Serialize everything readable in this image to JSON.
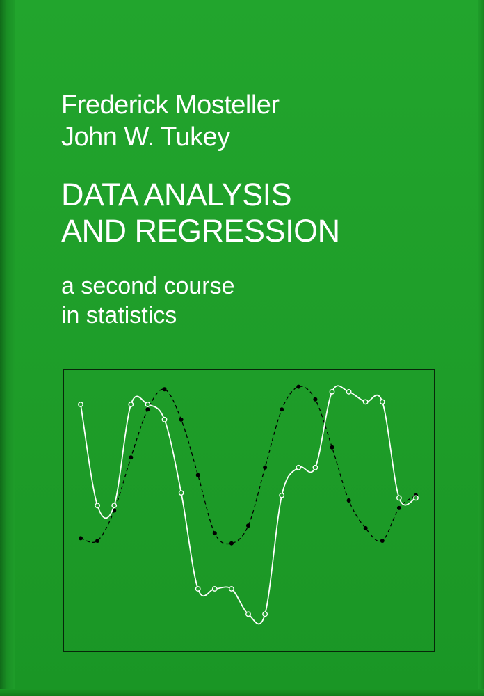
{
  "book": {
    "authors": [
      "Frederick Mosteller",
      "John W. Tukey"
    ],
    "title_lines": [
      "DATA ANALYSIS",
      "AND REGRESSION"
    ],
    "subtitle_lines": [
      "a second course",
      "in statistics"
    ]
  },
  "colors": {
    "cover_green": "#1f9e2a",
    "text": "#ffffff",
    "frame": "#000000",
    "open_series": "#ffffff",
    "dotted_series": "#000000"
  },
  "illustration": {
    "ylim": [
      0,
      10
    ],
    "xlim": [
      0,
      21
    ],
    "open_circle_series": {
      "x": [
        0,
        1,
        2,
        3,
        4,
        5,
        6,
        7,
        8,
        9,
        10,
        11,
        12,
        13,
        14,
        15,
        16,
        17,
        18,
        19,
        20
      ],
      "y": [
        9.2,
        5.2,
        5.2,
        9.2,
        9.2,
        8.6,
        5.7,
        1.9,
        1.9,
        1.9,
        0.9,
        0.9,
        5.6,
        6.7,
        6.7,
        9.7,
        9.7,
        9.3,
        9.3,
        5.5,
        5.5
      ]
    },
    "filled_dot_series": {
      "x": [
        0,
        1,
        2,
        3,
        4,
        5,
        6,
        7,
        8,
        9,
        10,
        11,
        12,
        13,
        14,
        15,
        16,
        17,
        18,
        19,
        20
      ],
      "y": [
        3.9,
        3.8,
        5.0,
        7.1,
        9.0,
        9.8,
        8.6,
        6.4,
        4.1,
        3.7,
        4.4,
        6.7,
        9.0,
        9.9,
        9.4,
        7.5,
        5.4,
        4.3,
        3.8,
        5.1,
        5.6
      ]
    }
  }
}
